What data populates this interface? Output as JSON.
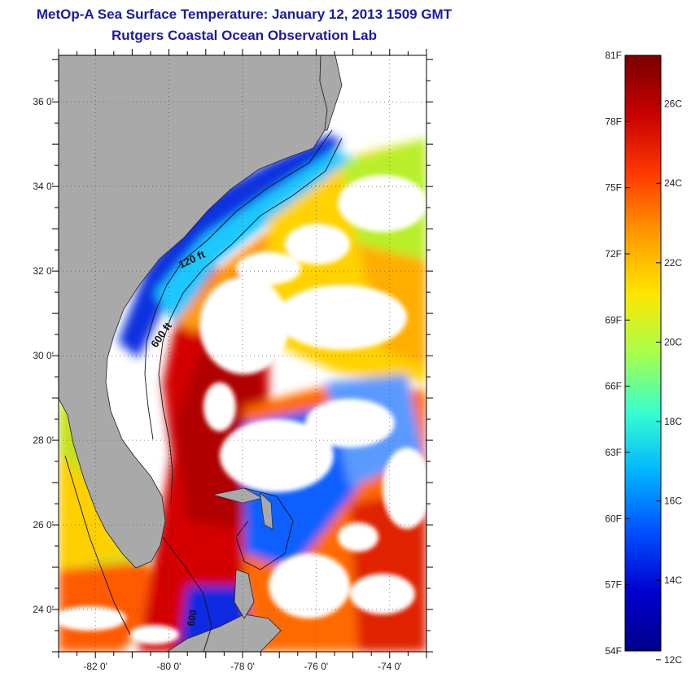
{
  "header": {
    "title": "MetOp-A Sea Surface Temperature:  January 12, 2013 1509 GMT",
    "subtitle": "Rutgers Coastal Ocean Observation Lab"
  },
  "map": {
    "lat_range": [
      23,
      37.1
    ],
    "lon_range": [
      -83,
      -73
    ],
    "lat_ticks": [
      {
        "value": 36,
        "label": "36 0'"
      },
      {
        "value": 34,
        "label": "34 0'"
      },
      {
        "value": 32,
        "label": "32 0'"
      },
      {
        "value": 30,
        "label": "30 0'"
      },
      {
        "value": 28,
        "label": "28 0'"
      },
      {
        "value": 26,
        "label": "26 0'"
      },
      {
        "value": 24,
        "label": "24 0'"
      }
    ],
    "lon_ticks": [
      {
        "value": -82,
        "label": "-82 0'"
      },
      {
        "value": -80,
        "label": "-80 0'"
      },
      {
        "value": -78,
        "label": "-78 0'"
      },
      {
        "value": -76,
        "label": "-76 0'"
      },
      {
        "value": -74,
        "label": "-74 0'"
      }
    ],
    "contour_labels": {
      "c120": "120 ft",
      "c600": "600 ft",
      "c600_south": "600"
    },
    "colors": {
      "land": "#a9a9a9",
      "cloud": "#ffffff"
    }
  },
  "colorbar": {
    "min_f": 54,
    "max_f": 81,
    "fahrenheit_labels": [
      "81F",
      "78F",
      "75F",
      "72F",
      "69F",
      "66F",
      "63F",
      "60F",
      "57F",
      "54F"
    ],
    "celsius_labels": [
      "26C",
      "24C",
      "22C",
      "20C",
      "18C",
      "16C",
      "14C",
      "12C"
    ],
    "stops": [
      "#7a0000",
      "#c80000",
      "#ff3a00",
      "#ff9a00",
      "#ffe600",
      "#a6ff4a",
      "#36ffd0",
      "#00b4ff",
      "#0050ff",
      "#0000d0",
      "#00008a"
    ]
  }
}
